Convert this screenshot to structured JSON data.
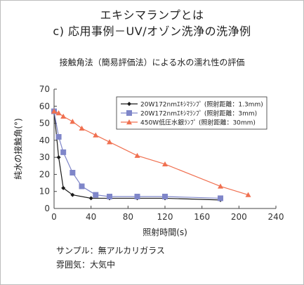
{
  "title_line1": "エキシマランプとは",
  "title_line2": "c) 応用事例－UV/オゾン洗浄の洗浄例",
  "notes": {
    "sample": "サンプル：無アルカリガラス",
    "atmosphere": "雰囲気：大気中"
  },
  "chart_data": {
    "type": "line",
    "title": "接触角法（簡易評価法）による水の濡れ性の評価",
    "xlabel": "照射時間(s)",
    "ylabel": "純水の接触角(°)",
    "xlim": [
      0,
      240
    ],
    "ylim": [
      0,
      70
    ],
    "xticks": [
      0,
      40,
      80,
      120,
      160,
      200,
      240
    ],
    "yticks": [
      0,
      10,
      20,
      30,
      40,
      50,
      60,
      70
    ],
    "grid": false,
    "legend_position": "top-right",
    "series": [
      {
        "name": "20W172nmｴｷｼﾏﾗﾝﾌﾟ (照射距離：1.3mm)",
        "color": "#1a1a1a",
        "marker": "diamond",
        "x": [
          0,
          5,
          10,
          20,
          40,
          60,
          90,
          120,
          180
        ],
        "y": [
          57,
          30,
          12,
          8,
          6,
          6,
          6,
          6,
          5
        ]
      },
      {
        "name": "20W172nmｴｷｼﾏﾗﾝﾌﾟ (照射距離：3mm)",
        "color": "#7f86c9",
        "marker": "square",
        "x": [
          0,
          5,
          10,
          20,
          30,
          45,
          60,
          90,
          120,
          180
        ],
        "y": [
          57,
          42,
          33,
          21,
          13,
          8,
          7,
          7,
          7,
          6
        ]
      },
      {
        "name": "450W低圧水銀ﾗﾝﾌﾟ (照射距離：30mm)",
        "color": "#f07050",
        "marker": "triangle",
        "x": [
          0,
          5,
          10,
          20,
          30,
          45,
          60,
          90,
          120,
          180,
          210
        ],
        "y": [
          57,
          56,
          54,
          51,
          47,
          43,
          39,
          31,
          26,
          13,
          8
        ]
      }
    ]
  }
}
